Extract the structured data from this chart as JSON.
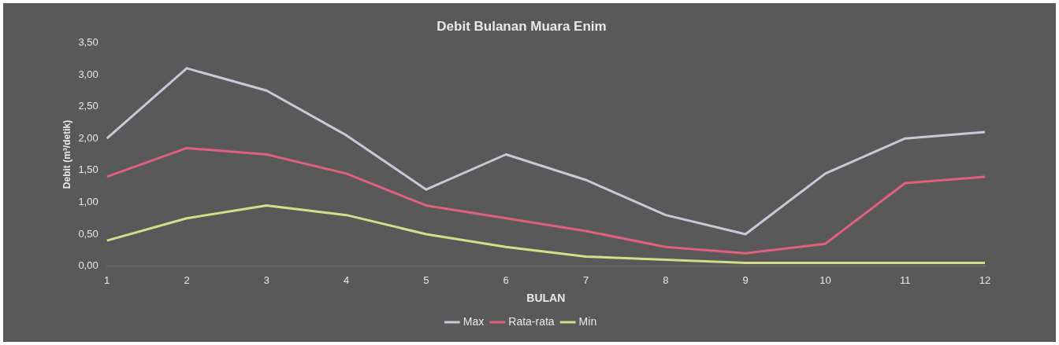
{
  "chart_data": {
    "type": "line",
    "title": "Debit Bulanan Muara Enim",
    "xlabel": "BULAN",
    "ylabel": "Debit (m³/detik)",
    "categories": [
      "1",
      "2",
      "3",
      "4",
      "5",
      "6",
      "7",
      "8",
      "9",
      "10",
      "11",
      "12"
    ],
    "series": [
      {
        "name": "Max",
        "color": "#c8c8d6",
        "values": [
          2.0,
          3.1,
          2.75,
          2.05,
          1.2,
          1.75,
          1.35,
          0.8,
          0.5,
          1.45,
          2.0,
          2.1
        ]
      },
      {
        "name": "Rata-rata",
        "color": "#e0607e",
        "values": [
          1.4,
          1.85,
          1.75,
          1.45,
          0.95,
          0.75,
          0.55,
          0.3,
          0.2,
          0.35,
          1.3,
          1.4
        ]
      },
      {
        "name": "Min",
        "color": "#d2de8a",
        "values": [
          0.4,
          0.75,
          0.95,
          0.8,
          0.5,
          0.3,
          0.15,
          0.1,
          0.05,
          0.05,
          0.05,
          0.05
        ]
      }
    ],
    "ylim": [
      0,
      3.5
    ],
    "yticks": [
      {
        "value": 0,
        "label": "0,00"
      },
      {
        "value": 0.5,
        "label": "0,50"
      },
      {
        "value": 1,
        "label": "1,00"
      },
      {
        "value": 1.5,
        "label": "1,50"
      },
      {
        "value": 2,
        "label": "2,00"
      },
      {
        "value": 2.5,
        "label": "2,50"
      },
      {
        "value": 3,
        "label": "3,00"
      },
      {
        "value": 3.5,
        "label": "3,50"
      }
    ],
    "grid": false,
    "legend": "bottom",
    "marker": "none",
    "line_style": "solid"
  }
}
